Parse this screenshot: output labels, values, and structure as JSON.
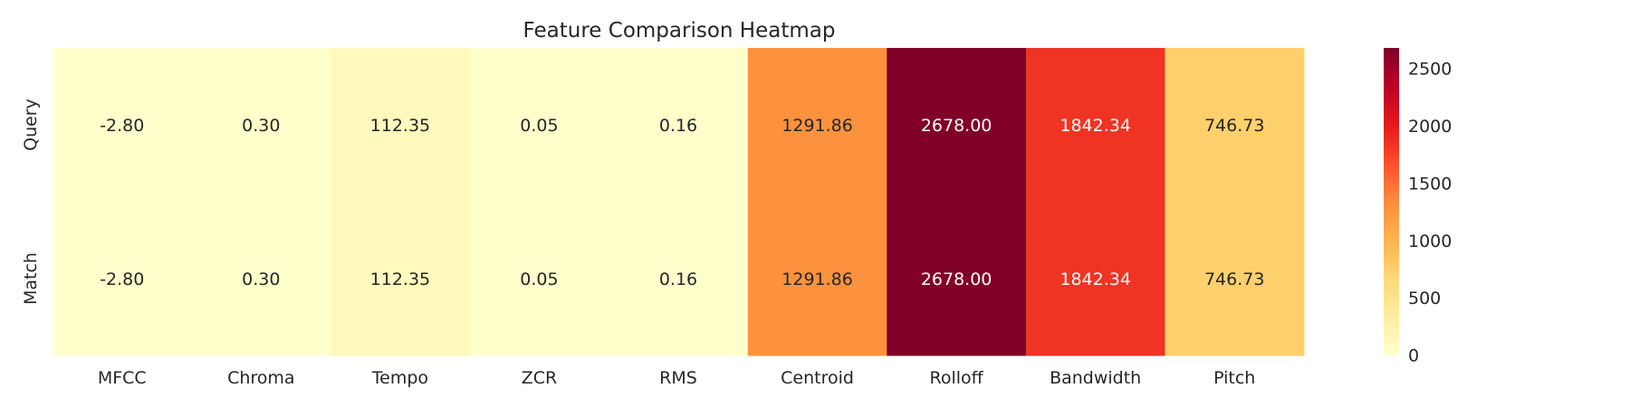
{
  "chart_data": {
    "type": "heatmap",
    "title": "Feature Comparison Heatmap",
    "rows": [
      "Query",
      "Match"
    ],
    "columns": [
      "MFCC",
      "Chroma",
      "Tempo",
      "ZCR",
      "RMS",
      "Centroid",
      "Rolloff",
      "Bandwidth",
      "Pitch"
    ],
    "values": [
      [
        -2.8,
        0.3,
        112.35,
        0.05,
        0.16,
        1291.86,
        2678.0,
        1842.34,
        746.73
      ],
      [
        -2.8,
        0.3,
        112.35,
        0.05,
        0.16,
        1291.86,
        2678.0,
        1842.34,
        746.73
      ]
    ],
    "value_format": "2 decimals",
    "colormap": "YlOrRd",
    "color_range": [
      -2.8,
      2678.0
    ],
    "colorbar": {
      "ticks": [
        0,
        500,
        1000,
        1500,
        2000,
        2500
      ],
      "tick_labels": [
        "0",
        "500",
        "1000",
        "1500",
        "2000",
        "2500"
      ]
    },
    "grid": false,
    "legend": "colorbar-right"
  }
}
